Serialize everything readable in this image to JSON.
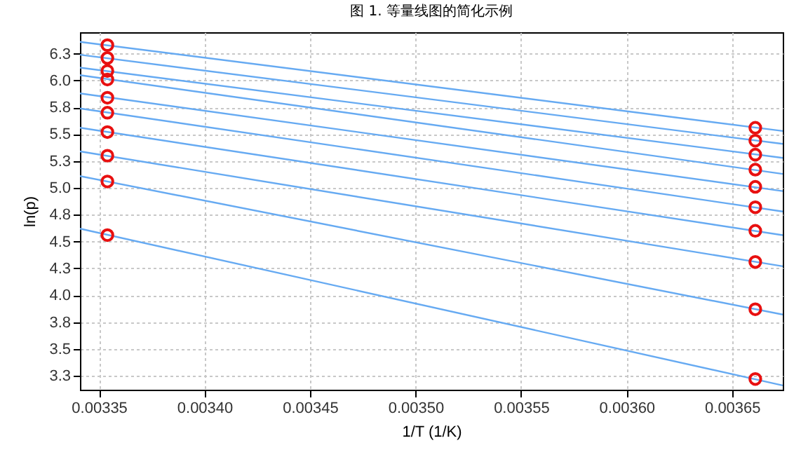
{
  "chart_data": {
    "type": "line",
    "title": "图 1. 等量线图的简化示例",
    "xlabel": "1/T (1/K)",
    "ylabel": "ln(p)",
    "xlim": [
      0.003341,
      0.003674
    ],
    "ylim": [
      3.12,
      6.45
    ],
    "xticks": [
      {
        "value": 0.00335,
        "label": "0.00335"
      },
      {
        "value": 0.0034,
        "label": "0.00340"
      },
      {
        "value": 0.00345,
        "label": "0.00345"
      },
      {
        "value": 0.0035,
        "label": "0.00350"
      },
      {
        "value": 0.00355,
        "label": "0.00355"
      },
      {
        "value": 0.0036,
        "label": "0.00360"
      },
      {
        "value": 0.00365,
        "label": "0.00365"
      }
    ],
    "yticks": [
      {
        "value": 3.25,
        "label": "3.3"
      },
      {
        "value": 3.5,
        "label": "3.5"
      },
      {
        "value": 3.75,
        "label": "3.8"
      },
      {
        "value": 4.0,
        "label": "4.0"
      },
      {
        "value": 4.25,
        "label": "4.3"
      },
      {
        "value": 4.5,
        "label": "4.5"
      },
      {
        "value": 4.75,
        "label": "4.8"
      },
      {
        "value": 5.0,
        "label": "5.0"
      },
      {
        "value": 5.25,
        "label": "5.3"
      },
      {
        "value": 5.5,
        "label": "5.5"
      },
      {
        "value": 5.75,
        "label": "5.8"
      },
      {
        "value": 6.0,
        "label": "6.0"
      },
      {
        "value": 6.25,
        "label": "6.3"
      }
    ],
    "grid": true,
    "line_style": "solid",
    "series": [
      {
        "type": "line",
        "color": "#66aaf2",
        "x": [
          0.003341,
          0.003674
        ],
        "values": [
          6.36,
          5.53
        ]
      },
      {
        "type": "line",
        "color": "#66aaf2",
        "x": [
          0.003341,
          0.003674
        ],
        "values": [
          6.24,
          5.41
        ]
      },
      {
        "type": "line",
        "color": "#66aaf2",
        "x": [
          0.003341,
          0.003674
        ],
        "values": [
          6.12,
          5.28
        ]
      },
      {
        "type": "line",
        "color": "#66aaf2",
        "x": [
          0.003341,
          0.003674
        ],
        "values": [
          6.05,
          5.13
        ]
      },
      {
        "type": "line",
        "color": "#66aaf2",
        "x": [
          0.003341,
          0.003674
        ],
        "values": [
          5.88,
          4.97
        ]
      },
      {
        "type": "line",
        "color": "#66aaf2",
        "x": [
          0.003341,
          0.003674
        ],
        "values": [
          5.74,
          4.78
        ]
      },
      {
        "type": "line",
        "color": "#66aaf2",
        "x": [
          0.003341,
          0.003674
        ],
        "values": [
          5.56,
          4.56
        ]
      },
      {
        "type": "line",
        "color": "#66aaf2",
        "x": [
          0.003341,
          0.003674
        ],
        "values": [
          5.34,
          4.27
        ]
      },
      {
        "type": "line",
        "color": "#66aaf2",
        "x": [
          0.003341,
          0.003674
        ],
        "values": [
          5.11,
          3.82
        ]
      },
      {
        "type": "line",
        "color": "#66aaf2",
        "x": [
          0.003341,
          0.003674
        ],
        "values": [
          4.62,
          3.16
        ]
      },
      {
        "type": "scatter",
        "color": "#e81010",
        "marker": "circle",
        "x": [
          0.003354,
          0.003354,
          0.003354,
          0.003354,
          0.003354,
          0.003354,
          0.003354,
          0.003354,
          0.003354,
          0.003354,
          0.003661,
          0.003661,
          0.003661,
          0.003661,
          0.003661,
          0.003661,
          0.003661,
          0.003661,
          0.003661,
          0.003661
        ],
        "values": [
          6.33,
          6.21,
          6.09,
          6.01,
          5.84,
          5.7,
          5.52,
          5.3,
          5.06,
          4.56,
          5.56,
          5.44,
          5.31,
          5.17,
          5.01,
          4.82,
          4.6,
          4.31,
          3.87,
          3.22
        ]
      }
    ]
  }
}
